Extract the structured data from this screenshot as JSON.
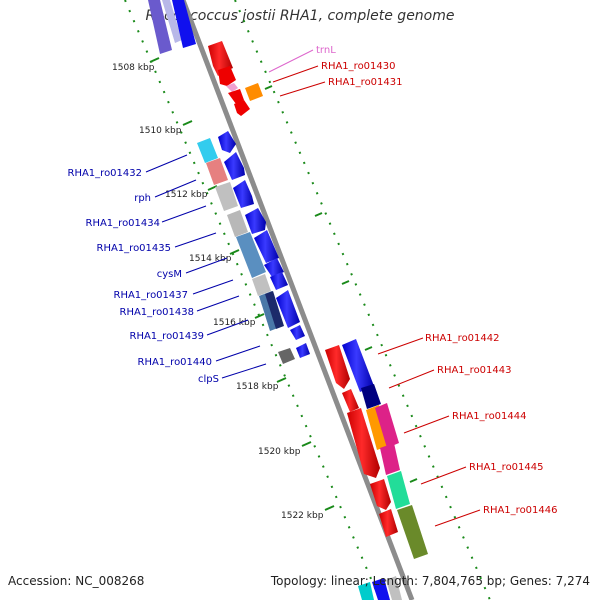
{
  "title": "Rhodococcus jostii RHA1, complete genome",
  "footer": {
    "accession": "Accession: NC_008268",
    "summary": "Topology: linear; Length: 7,804,765 bp; Genes: 7,274"
  },
  "colors": {
    "backbone": "#8c8c8c",
    "tick": "#1a8a1a",
    "reverse_label": "#0000aa",
    "forward_label": "#cc0000",
    "rna_label": "#dd66cc"
  },
  "scale_ticks": [
    "1508 kbp",
    "1510 kbp",
    "1512 kbp",
    "1514 kbp",
    "1516 kbp",
    "1518 kbp",
    "1520 kbp",
    "1522 kbp"
  ],
  "reverse_genes": [
    "RHA1_ro01432",
    "rph",
    "RHA1_ro01434",
    "RHA1_ro01435",
    "cysM",
    "RHA1_ro01437",
    "RHA1_ro01438",
    "RHA1_ro01439",
    "RHA1_ro01440",
    "clpS"
  ],
  "forward_genes_top": [
    "trnL",
    "RHA1_ro01430",
    "RHA1_ro01431"
  ],
  "forward_genes_bottom": [
    "RHA1_ro01442",
    "RHA1_ro01443",
    "RHA1_ro01444",
    "RHA1_ro01445",
    "RHA1_ro01446"
  ]
}
